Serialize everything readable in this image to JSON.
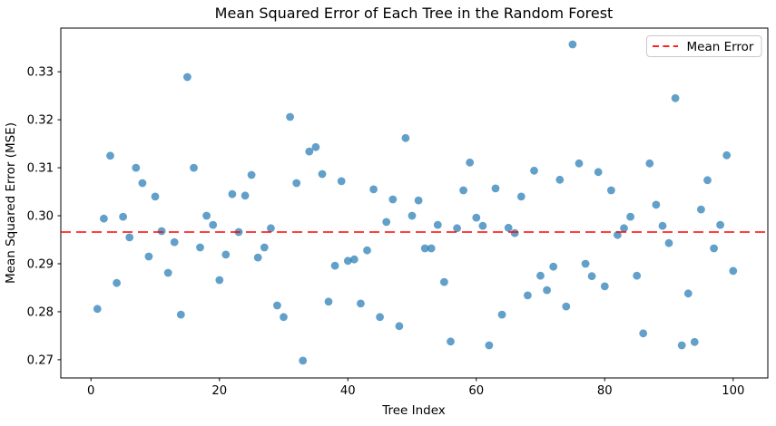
{
  "figure": {
    "title": "Mean Squared Error of Each Tree in the Random Forest",
    "colors": {
      "point_fill": "#1f77b4",
      "point_opacity": 0.7,
      "mean_line": "#ff0000",
      "spine": "#000000",
      "background": "#ffffff",
      "legend_border": "#c9c9c9",
      "legend_background": "#ffffff"
    }
  },
  "chart_data": {
    "type": "scatter",
    "title": "Mean Squared Error of Each Tree in the Random Forest",
    "xlabel": "Tree Index",
    "ylabel": "Mean Squared Error (MSE)",
    "xlim": [
      -4.7,
      105.4
    ],
    "ylim": [
      0.2662,
      0.3391
    ],
    "x_ticks": [
      0,
      20,
      40,
      60,
      80,
      100
    ],
    "y_ticks": [
      0.27,
      0.28,
      0.29,
      0.3,
      0.31,
      0.32,
      0.33
    ],
    "grid": false,
    "legend_position": "upper right",
    "series": [
      {
        "name": "tree_mse",
        "marker": "circle",
        "x": [
          1,
          2,
          3,
          4,
          5,
          6,
          7,
          8,
          9,
          10,
          11,
          12,
          13,
          14,
          15,
          16,
          17,
          18,
          19,
          20,
          21,
          22,
          23,
          24,
          25,
          26,
          27,
          28,
          29,
          30,
          31,
          32,
          33,
          34,
          35,
          36,
          37,
          38,
          39,
          40,
          41,
          42,
          43,
          44,
          45,
          46,
          47,
          48,
          49,
          50,
          51,
          52,
          53,
          54,
          55,
          56,
          57,
          58,
          59,
          60,
          61,
          62,
          63,
          64,
          65,
          66,
          67,
          68,
          69,
          70,
          71,
          72,
          73,
          74,
          75,
          76,
          77,
          78,
          79,
          80,
          81,
          82,
          83,
          84,
          85,
          86,
          87,
          88,
          89,
          90,
          91,
          92,
          93,
          94,
          95,
          96,
          97,
          98,
          99,
          100
        ],
        "y": [
          0.2806,
          0.2994,
          0.3125,
          0.286,
          0.2998,
          0.2955,
          0.31,
          0.3068,
          0.2915,
          0.304,
          0.2968,
          0.2881,
          0.2945,
          0.2794,
          0.3289,
          0.31,
          0.2934,
          0.3,
          0.2981,
          0.2866,
          0.2919,
          0.3045,
          0.2966,
          0.3042,
          0.3085,
          0.2913,
          0.2934,
          0.2974,
          0.2813,
          0.2789,
          0.3206,
          0.3068,
          0.2698,
          0.3134,
          0.3143,
          0.3087,
          0.2821,
          0.2896,
          0.3072,
          0.2906,
          0.2909,
          0.2817,
          0.2928,
          0.3055,
          0.2789,
          0.2987,
          0.3034,
          0.277,
          0.3162,
          0.3,
          0.3032,
          0.2932,
          0.2932,
          0.2981,
          0.2862,
          0.2738,
          0.2974,
          0.3053,
          0.3111,
          0.2996,
          0.2979,
          0.273,
          0.3057,
          0.2794,
          0.2975,
          0.2964,
          0.304,
          0.2834,
          0.3094,
          0.2875,
          0.2845,
          0.2894,
          0.3075,
          0.2811,
          0.3357,
          0.3109,
          0.29,
          0.2874,
          0.3091,
          0.2853,
          0.3053,
          0.296,
          0.2974,
          0.2998,
          0.2875,
          0.2755,
          0.3109,
          0.3023,
          0.2979,
          0.2943,
          0.3245,
          0.273,
          0.2838,
          0.2737,
          0.3013,
          0.3074,
          0.2932,
          0.2981,
          0.3126,
          0.2885
        ]
      }
    ],
    "mean_line": {
      "label": "Mean Error",
      "value": 0.2966,
      "style": "dashed",
      "color": "#ff0000"
    }
  }
}
